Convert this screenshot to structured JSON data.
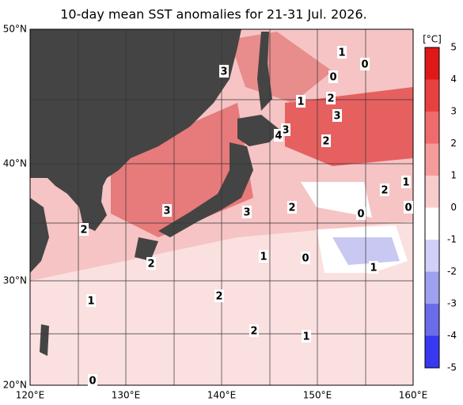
{
  "title": "10-day mean SST anomalies for 21-31 Jul. 2026.",
  "axes": {
    "x_labels": [
      "120°E",
      "130°E",
      "140°E",
      "150°E",
      "160°E"
    ],
    "y_labels": [
      "50°N",
      "40°N",
      "30°N",
      "20°N"
    ]
  },
  "colorbar": {
    "unit": "[°C]",
    "labels": [
      "5",
      "4",
      "3",
      "2",
      "1",
      "0",
      "-1",
      "-2",
      "-3",
      "-4",
      "-5"
    ]
  },
  "contour_labels": [
    "3",
    "1",
    "0",
    "0",
    "2",
    "1",
    "3",
    "3",
    "4",
    "2",
    "2",
    "1",
    "0",
    "2",
    "0",
    "3",
    "3",
    "2",
    "1",
    "0",
    "2",
    "1",
    "1",
    "2",
    "2",
    "1",
    "0"
  ]
}
